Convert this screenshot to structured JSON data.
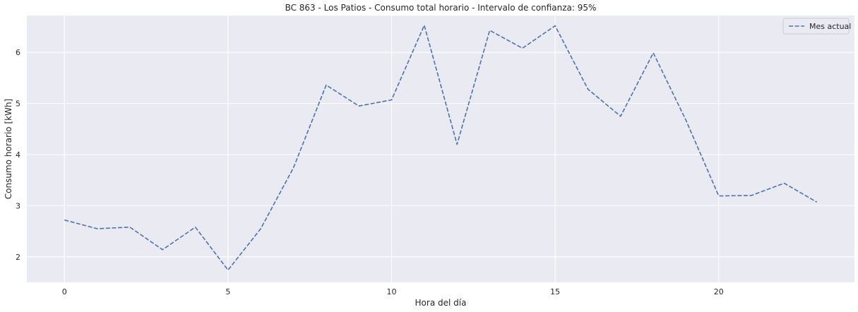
{
  "chart_data": {
    "type": "line",
    "title": "BC 863 - Los Patios - Consumo total horario - Intervalo de confianza: 95%",
    "xlabel": "Hora del día",
    "ylabel": "Consumo horario [kWh]",
    "xlim": [
      -1.15,
      24.15
    ],
    "ylim": [
      1.5,
      6.72
    ],
    "xticks": [
      0,
      5,
      10,
      15,
      20
    ],
    "yticks": [
      2,
      3,
      4,
      5,
      6
    ],
    "grid": true,
    "legend_position": "top-right",
    "series": [
      {
        "name": "Mes actual",
        "color": "#4C72B0",
        "line_style": "dashed",
        "x": [
          0,
          1,
          2,
          3,
          4,
          5,
          6,
          7,
          8,
          9,
          10,
          11,
          12,
          13,
          14,
          15,
          16,
          17,
          18,
          19,
          20,
          21,
          22,
          23
        ],
        "y": [
          2.72,
          2.55,
          2.58,
          2.14,
          2.58,
          1.74,
          2.55,
          3.74,
          5.36,
          4.95,
          5.07,
          6.53,
          4.2,
          6.43,
          6.08,
          6.52,
          5.28,
          4.75,
          5.99,
          4.67,
          3.19,
          3.2,
          3.44,
          3.07
        ]
      }
    ]
  },
  "colors": {
    "plot_background": "#EAEAF2",
    "grid": "#FFFFFF",
    "text": "#262626"
  }
}
